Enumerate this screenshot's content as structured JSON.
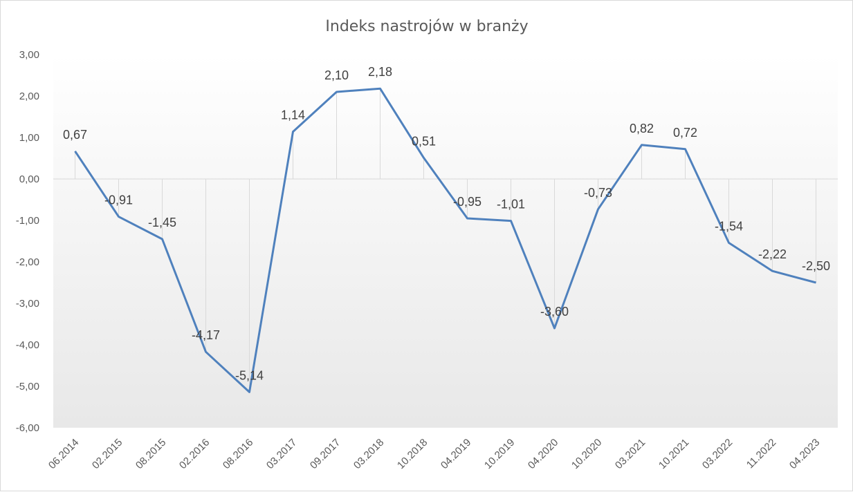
{
  "chart_data": {
    "type": "line",
    "title": "Indeks  nastrojów  w branży",
    "categories": [
      "06.2014",
      "02.2015",
      "08.2015",
      "02.2016",
      "08.2016",
      "03.2017",
      "09.2017",
      "03.2018",
      "10.2018",
      "04.2019",
      "10.2019",
      "04.2020",
      "10.2020",
      "03.2021",
      "10.2021",
      "03.2022",
      "11.2022",
      "04.2023"
    ],
    "values": [
      0.67,
      -0.91,
      -1.45,
      -4.17,
      -5.14,
      1.14,
      2.1,
      2.18,
      0.51,
      -0.95,
      -1.01,
      -3.6,
      -0.73,
      0.82,
      0.72,
      -1.54,
      -2.22,
      -2.5
    ],
    "value_labels": [
      "0,67",
      "-0,91",
      "-1,45",
      "-4,17",
      "-5,14",
      "1,14",
      "2,10",
      "2,18",
      "0,51",
      "-0,95",
      "-1,01",
      "-3,60",
      "-0,73",
      "0,82",
      "0,72",
      "-1,54",
      "-2,22",
      "-2,50"
    ],
    "ylim": [
      -6,
      3
    ],
    "yticks": [
      3,
      2,
      1,
      0,
      -1,
      -2,
      -3,
      -4,
      -5,
      -6
    ],
    "ytick_labels": [
      "3,00",
      "2,00",
      "1,00",
      "0,00",
      "-1,00",
      "-2,00",
      "-3,00",
      "-4,00",
      "-5,00",
      "-6,00"
    ],
    "grid": false,
    "drop_lines": true,
    "legend": "none",
    "colors": {
      "line": "#4f81bd",
      "drop_line": "#d9d9d9",
      "axis": "#d9d9d9",
      "bg_top": "#ffffff",
      "bg_bottom": "#e8e8e8"
    }
  }
}
